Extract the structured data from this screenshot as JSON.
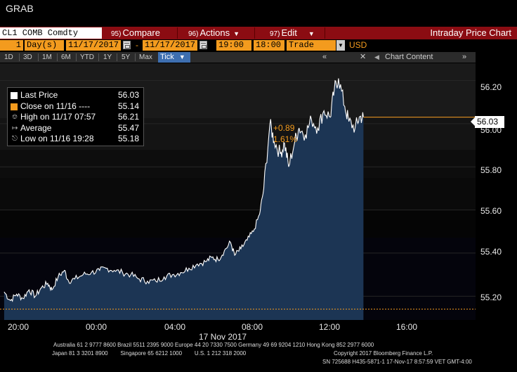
{
  "window": {
    "title": "GRAB"
  },
  "command_bar": {
    "ticker": "CL1 COMB Comdty",
    "compare_num": "95)",
    "compare_label": "Compare",
    "actions_num": "96)",
    "actions_label": "Actions",
    "edit_num": "97)",
    "edit_label": "Edit",
    "view_title": "Intraday Price Chart"
  },
  "range_bar": {
    "period_value": "1",
    "period_unit": "Day(s)",
    "start_date": "11/17/2017",
    "end_date": "11/17/2017",
    "start_time": "19:00",
    "end_time": "18:00",
    "field": "Trade",
    "currency": "USD",
    "dash": "-"
  },
  "tabs": {
    "items": [
      "1D",
      "3D",
      "1M",
      "6M",
      "YTD",
      "1Y",
      "5Y",
      "Max"
    ],
    "selected": "Tick",
    "chart_content_label": "Chart Content"
  },
  "legend": {
    "rows": [
      {
        "label": "Last Price",
        "value": "56.03"
      },
      {
        "label": "Close on 11/16 ----",
        "value": "55.14"
      },
      {
        "label": "High on 11/17 07:57",
        "value": "56.21"
      },
      {
        "label": "Average",
        "value": "55.47"
      },
      {
        "label": "Low on 11/16 19:28",
        "value": "55.18"
      }
    ]
  },
  "change": {
    "abs": "+0.89",
    "pct": "1.61%"
  },
  "last_price_box": "56.03",
  "colors": {
    "accent_orange": "#f39b1e",
    "fill_blue": "#1c3554",
    "line_white": "#ffffff",
    "command_red": "#8b0c12"
  },
  "chart_data": {
    "type": "area",
    "x_tick_labels": [
      "20:00",
      "00:00",
      "04:00",
      "08:00",
      "12:00",
      "16:00"
    ],
    "x_label": "17 Nov 2017",
    "y_tick_labels": [
      "55.20",
      "55.40",
      "55.60",
      "55.80",
      "56.00",
      "56.20"
    ],
    "ylim": [
      55.09,
      56.28
    ],
    "xlim_hours": [
      18.8,
      41.7
    ],
    "close_reference": 55.14,
    "last_price": 56.03,
    "series": [
      {
        "name": "Last Price",
        "points": [
          [
            19.0,
            55.22
          ],
          [
            19.3,
            55.18
          ],
          [
            19.6,
            55.21
          ],
          [
            19.9,
            55.19
          ],
          [
            20.2,
            55.23
          ],
          [
            20.5,
            55.2
          ],
          [
            20.8,
            55.24
          ],
          [
            21.1,
            55.26
          ],
          [
            21.3,
            55.23
          ],
          [
            21.6,
            55.29
          ],
          [
            21.9,
            55.32
          ],
          [
            22.1,
            55.27
          ],
          [
            22.4,
            55.28
          ],
          [
            22.8,
            55.3
          ],
          [
            23.2,
            55.31
          ],
          [
            23.6,
            55.32
          ],
          [
            23.9,
            55.33
          ],
          [
            24.3,
            55.32
          ],
          [
            24.7,
            55.31
          ],
          [
            25.1,
            55.3
          ],
          [
            25.5,
            55.28
          ],
          [
            25.9,
            55.27
          ],
          [
            26.3,
            55.27
          ],
          [
            26.7,
            55.29
          ],
          [
            27.1,
            55.3
          ],
          [
            27.5,
            55.31
          ],
          [
            27.9,
            55.33
          ],
          [
            28.3,
            55.35
          ],
          [
            28.7,
            55.36
          ],
          [
            29.0,
            55.38
          ],
          [
            29.3,
            55.37
          ],
          [
            29.6,
            55.41
          ],
          [
            29.9,
            55.45
          ],
          [
            30.1,
            55.39
          ],
          [
            30.4,
            55.42
          ],
          [
            30.7,
            55.46
          ],
          [
            31.0,
            55.5
          ],
          [
            31.3,
            55.58
          ],
          [
            31.5,
            55.7
          ],
          [
            31.8,
            56.0
          ],
          [
            32.0,
            55.92
          ],
          [
            32.3,
            55.86
          ],
          [
            32.5,
            55.91
          ],
          [
            32.7,
            55.8
          ],
          [
            33.0,
            55.92
          ],
          [
            33.2,
            55.98
          ],
          [
            33.5,
            55.95
          ],
          [
            33.8,
            56.02
          ],
          [
            34.1,
            55.98
          ],
          [
            34.4,
            56.06
          ],
          [
            34.7,
            56.03
          ],
          [
            34.9,
            56.16
          ],
          [
            35.1,
            56.21
          ],
          [
            35.4,
            56.08
          ],
          [
            35.6,
            56.01
          ],
          [
            35.9,
            55.98
          ],
          [
            36.1,
            56.03
          ],
          [
            36.3,
            56.03
          ]
        ]
      }
    ]
  },
  "footer": {
    "line1": "Australia 61 2 9777 8600 Brazil 5511 2395 9000 Europe 44 20 7330 7500 Germany 49 69 9204 1210 Hong Kong 852 2977 6000",
    "line2": "Japan 81 3 3201 8900        Singapore 65 6212 1000        U.S. 1 212 318 2000",
    "line3": "Copyright 2017 Bloomberg Finance L.P.",
    "line4": "SN 725688 H435-5871-1 17-Nov-17   8:57:59 VET   GMT-4:00"
  }
}
